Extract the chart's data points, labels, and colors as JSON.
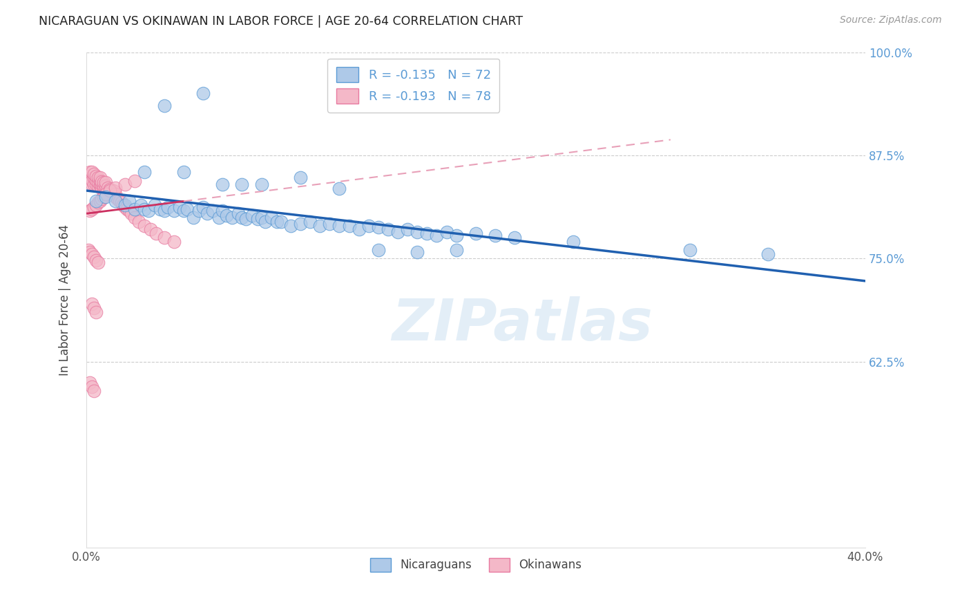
{
  "title": "NICARAGUAN VS OKINAWAN IN LABOR FORCE | AGE 20-64 CORRELATION CHART",
  "source": "Source: ZipAtlas.com",
  "ylabel": "In Labor Force | Age 20-64",
  "xlim": [
    0.0,
    0.4
  ],
  "ylim": [
    0.4,
    1.0
  ],
  "legend_r_nicaraguan": "-0.135",
  "legend_n_nicaraguan": "72",
  "legend_r_okinawan": "-0.193",
  "legend_n_okinawan": "78",
  "blue_color": "#aec9e8",
  "pink_color": "#f4b8c8",
  "blue_edge": "#5b9bd5",
  "pink_edge": "#e87aa0",
  "trend_blue": "#2060b0",
  "trend_pink_solid": "#cc3060",
  "trend_pink_dash": "#e8a0b8",
  "watermark": "ZIPatlas",
  "blue_x": [
    0.005,
    0.01,
    0.015,
    0.02,
    0.022,
    0.025,
    0.028,
    0.03,
    0.032,
    0.035,
    0.038,
    0.04,
    0.042,
    0.045,
    0.048,
    0.05,
    0.052,
    0.055,
    0.058,
    0.06,
    0.062,
    0.065,
    0.068,
    0.07,
    0.072,
    0.075,
    0.078,
    0.08,
    0.082,
    0.085,
    0.088,
    0.09,
    0.092,
    0.095,
    0.098,
    0.1,
    0.105,
    0.11,
    0.115,
    0.12,
    0.125,
    0.13,
    0.135,
    0.14,
    0.145,
    0.15,
    0.155,
    0.16,
    0.165,
    0.17,
    0.175,
    0.18,
    0.185,
    0.19,
    0.2,
    0.21,
    0.22,
    0.03,
    0.05,
    0.07,
    0.09,
    0.11,
    0.13,
    0.15,
    0.17,
    0.19,
    0.25,
    0.31,
    0.35,
    0.04,
    0.06,
    0.08
  ],
  "blue_y": [
    0.82,
    0.825,
    0.82,
    0.815,
    0.82,
    0.81,
    0.815,
    0.81,
    0.808,
    0.815,
    0.81,
    0.808,
    0.812,
    0.808,
    0.812,
    0.808,
    0.81,
    0.8,
    0.808,
    0.812,
    0.805,
    0.808,
    0.8,
    0.808,
    0.802,
    0.8,
    0.805,
    0.8,
    0.798,
    0.802,
    0.798,
    0.8,
    0.795,
    0.8,
    0.795,
    0.795,
    0.79,
    0.792,
    0.795,
    0.79,
    0.792,
    0.79,
    0.79,
    0.785,
    0.79,
    0.788,
    0.785,
    0.782,
    0.785,
    0.782,
    0.78,
    0.778,
    0.782,
    0.778,
    0.78,
    0.778,
    0.775,
    0.855,
    0.855,
    0.84,
    0.84,
    0.848,
    0.835,
    0.76,
    0.758,
    0.76,
    0.77,
    0.76,
    0.755,
    0.935,
    0.95,
    0.84
  ],
  "pink_x": [
    0.001,
    0.002,
    0.002,
    0.003,
    0.003,
    0.003,
    0.004,
    0.004,
    0.004,
    0.005,
    0.005,
    0.005,
    0.006,
    0.006,
    0.006,
    0.007,
    0.007,
    0.007,
    0.007,
    0.008,
    0.008,
    0.008,
    0.009,
    0.009,
    0.009,
    0.01,
    0.01,
    0.01,
    0.011,
    0.011,
    0.012,
    0.012,
    0.013,
    0.013,
    0.014,
    0.014,
    0.015,
    0.015,
    0.016,
    0.017,
    0.018,
    0.019,
    0.02,
    0.021,
    0.022,
    0.023,
    0.025,
    0.027,
    0.03,
    0.033,
    0.036,
    0.04,
    0.045,
    0.002,
    0.003,
    0.004,
    0.005,
    0.006,
    0.007,
    0.008,
    0.009,
    0.01,
    0.012,
    0.015,
    0.02,
    0.025,
    0.001,
    0.002,
    0.003,
    0.004,
    0.005,
    0.006,
    0.003,
    0.004,
    0.005,
    0.002,
    0.003,
    0.004
  ],
  "pink_y": [
    0.85,
    0.845,
    0.855,
    0.84,
    0.845,
    0.855,
    0.84,
    0.848,
    0.852,
    0.84,
    0.845,
    0.85,
    0.838,
    0.842,
    0.848,
    0.838,
    0.84,
    0.844,
    0.848,
    0.835,
    0.84,
    0.843,
    0.835,
    0.838,
    0.842,
    0.835,
    0.838,
    0.842,
    0.832,
    0.836,
    0.83,
    0.834,
    0.828,
    0.832,
    0.828,
    0.832,
    0.825,
    0.828,
    0.822,
    0.82,
    0.818,
    0.815,
    0.812,
    0.81,
    0.808,
    0.805,
    0.8,
    0.795,
    0.79,
    0.785,
    0.78,
    0.775,
    0.77,
    0.808,
    0.81,
    0.812,
    0.815,
    0.818,
    0.82,
    0.822,
    0.825,
    0.828,
    0.832,
    0.836,
    0.84,
    0.844,
    0.76,
    0.758,
    0.755,
    0.752,
    0.748,
    0.745,
    0.695,
    0.69,
    0.685,
    0.6,
    0.595,
    0.59
  ]
}
